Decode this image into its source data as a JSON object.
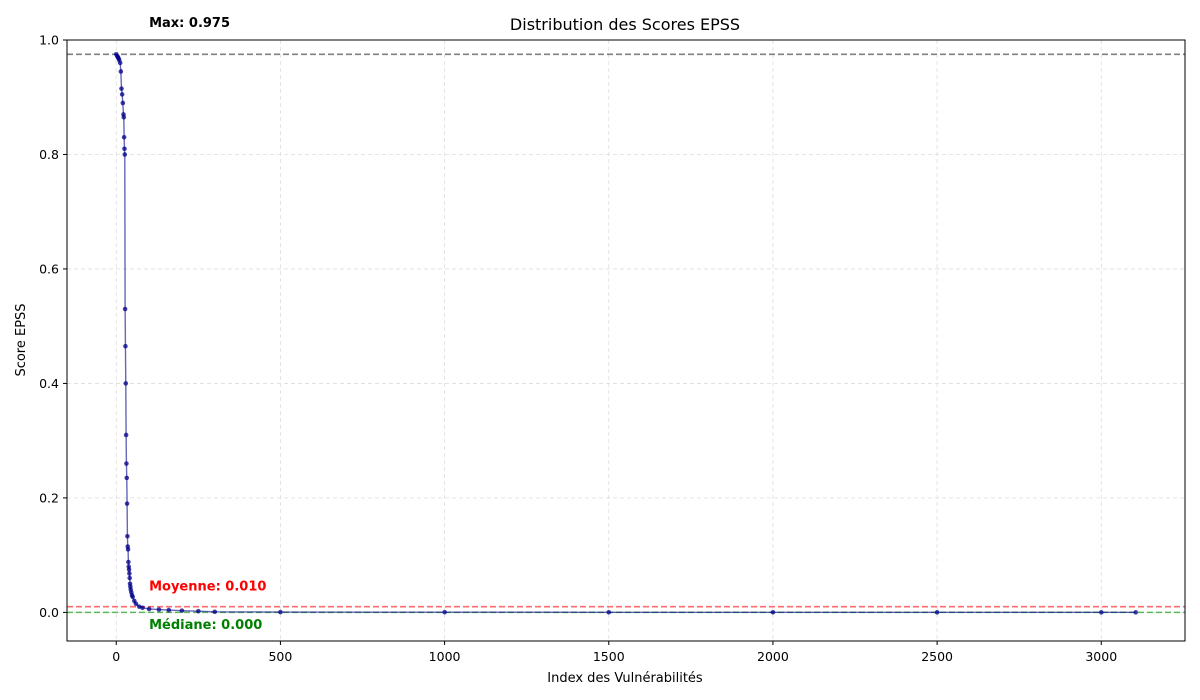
{
  "chart_data": {
    "type": "line",
    "title": "Distribution des Scores EPSS",
    "xlabel": "Index des Vulnérabilités",
    "ylabel": "Score EPSS",
    "xlim": [
      -150,
      3255
    ],
    "ylim": [
      -0.05,
      1.0
    ],
    "xticks": [
      0,
      500,
      1000,
      1500,
      2000,
      2500,
      3000
    ],
    "yticks": [
      0.0,
      0.2,
      0.4,
      0.6,
      0.8,
      1.0
    ],
    "xtick_labels": [
      "0",
      "500",
      "1000",
      "1500",
      "2000",
      "2500",
      "3000"
    ],
    "ytick_labels": [
      "0.0",
      "0.2",
      "0.4",
      "0.6",
      "0.8",
      "1.0"
    ],
    "grid": true,
    "series": [
      {
        "color": "#00008b",
        "markers": true,
        "x": [
          0,
          3,
          5,
          7,
          9,
          12,
          14,
          16,
          18,
          20,
          22,
          23,
          24,
          25,
          26,
          27,
          28,
          29,
          30,
          31,
          32,
          33,
          34,
          35,
          36,
          37,
          38,
          39,
          40,
          41,
          42,
          43,
          44,
          46,
          48,
          50,
          55,
          60,
          70,
          80,
          100,
          130,
          160,
          200,
          250,
          300,
          500,
          1000,
          1500,
          2000,
          2500,
          3000,
          3105
        ],
        "y": [
          0.975,
          0.972,
          0.97,
          0.968,
          0.965,
          0.96,
          0.945,
          0.915,
          0.905,
          0.89,
          0.87,
          0.865,
          0.83,
          0.81,
          0.8,
          0.53,
          0.465,
          0.4,
          0.31,
          0.26,
          0.235,
          0.19,
          0.133,
          0.115,
          0.11,
          0.088,
          0.08,
          0.075,
          0.068,
          0.06,
          0.05,
          0.045,
          0.04,
          0.035,
          0.03,
          0.027,
          0.02,
          0.015,
          0.01,
          0.008,
          0.006,
          0.005,
          0.004,
          0.003,
          0.002,
          0.001,
          0.0005,
          0.0003,
          0.0002,
          0.0002,
          0.0001,
          0.0001,
          0.0001
        ]
      }
    ],
    "reference_lines": [
      {
        "name": "max",
        "value": 0.975,
        "color": "#808080",
        "label": "Max: 0.975",
        "label_color": "#000000",
        "label_x": 100,
        "label_y": 1.03
      },
      {
        "name": "mean",
        "value": 0.01,
        "color": "#ff6b6b",
        "label": "Moyenne: 0.010",
        "label_color": "#ff0000",
        "label_x": 100,
        "label_y": 0.045
      },
      {
        "name": "median",
        "value": 0.0,
        "color": "#5cb85c",
        "label": "Médiane: 0.000",
        "label_color": "#008000",
        "label_x": 100,
        "label_y": -0.022
      }
    ]
  }
}
